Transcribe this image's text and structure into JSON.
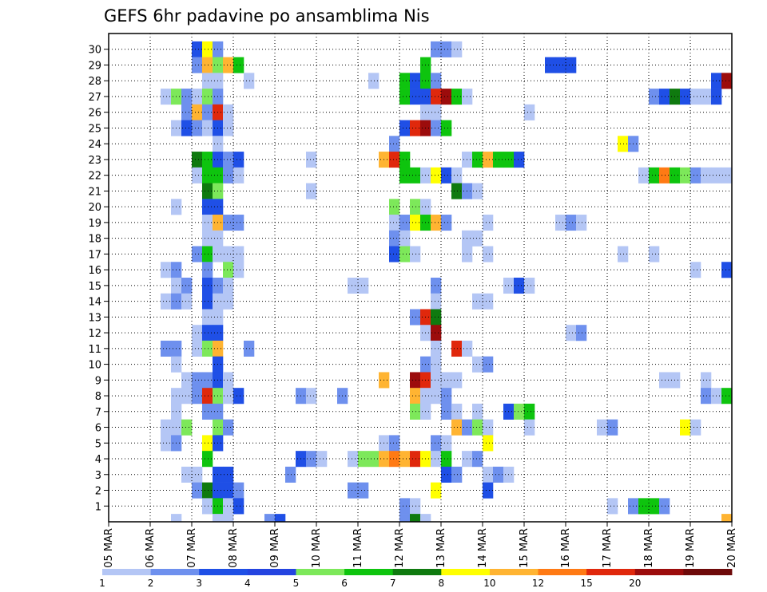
{
  "chart_data": {
    "type": "heatmap",
    "title": "GEFS 6hr padavine po ansamblima Nis",
    "x_ticks": [
      "05 MAR",
      "06 MAR",
      "07 MAR",
      "08 MAR",
      "09 MAR",
      "10 MAR",
      "11 MAR",
      "12 MAR",
      "13 MAR",
      "14 MAR",
      "15 MAR",
      "16 MAR",
      "17 MAR",
      "18 MAR",
      "19 MAR",
      "20 MAR"
    ],
    "xlim": [
      "05 MAR 00z",
      "20 MAR 00z"
    ],
    "step_hours": 6,
    "y_ticks": [
      "1",
      "2",
      "3",
      "4",
      "5",
      "6",
      "7",
      "8",
      "9",
      "10",
      "11",
      "12",
      "13",
      "14",
      "15",
      "16",
      "17",
      "18",
      "19",
      "20",
      "21",
      "22",
      "23",
      "24",
      "25",
      "26",
      "27",
      "28",
      "29",
      "30"
    ],
    "ylim": [
      0,
      30
    ],
    "grid": true,
    "colorbar": {
      "levels": [
        "1",
        "2",
        "3",
        "4",
        "5",
        "6",
        "7",
        "8",
        "10",
        "12",
        "15",
        "20"
      ],
      "colors": [
        "#b4c6f5",
        "#6e90ee",
        "#1f4fe6",
        "#2444e0",
        "#7de85a",
        "#0ec40e",
        "#0f7a0f",
        "#ffff00",
        "#ffb432",
        "#ff7a14",
        "#e0280c",
        "#9c0c0c",
        "#6e0a0a"
      ],
      "position": "bottom"
    },
    "cells": [
      [
        8,
        30,
        3
      ],
      [
        9,
        30,
        8
      ],
      [
        10,
        30,
        2
      ],
      [
        31,
        30,
        2
      ],
      [
        32,
        30,
        2
      ],
      [
        33,
        30,
        1
      ],
      [
        8,
        29,
        2
      ],
      [
        9,
        29,
        10
      ],
      [
        10,
        29,
        5
      ],
      [
        11,
        29,
        10
      ],
      [
        12,
        29,
        6
      ],
      [
        30,
        29,
        6
      ],
      [
        42,
        29,
        3
      ],
      [
        43,
        29,
        3
      ],
      [
        44,
        29,
        3
      ],
      [
        9,
        28,
        1
      ],
      [
        10,
        28,
        1
      ],
      [
        13,
        28,
        1
      ],
      [
        25,
        28,
        1
      ],
      [
        28,
        28,
        6
      ],
      [
        29,
        28,
        3
      ],
      [
        30,
        28,
        6
      ],
      [
        31,
        28,
        2
      ],
      [
        58,
        28,
        3
      ],
      [
        59,
        28,
        20
      ],
      [
        5,
        27,
        1
      ],
      [
        6,
        27,
        5
      ],
      [
        7,
        27,
        2
      ],
      [
        8,
        27,
        1
      ],
      [
        9,
        27,
        5
      ],
      [
        10,
        27,
        2
      ],
      [
        28,
        27,
        6
      ],
      [
        29,
        27,
        3
      ],
      [
        30,
        27,
        3
      ],
      [
        31,
        27,
        15
      ],
      [
        32,
        27,
        20
      ],
      [
        33,
        27,
        6
      ],
      [
        34,
        27,
        1
      ],
      [
        52,
        27,
        2
      ],
      [
        53,
        27,
        3
      ],
      [
        54,
        27,
        7
      ],
      [
        55,
        27,
        3
      ],
      [
        56,
        27,
        1
      ],
      [
        57,
        27,
        1
      ],
      [
        58,
        27,
        3
      ],
      [
        7,
        26,
        2
      ],
      [
        8,
        26,
        10
      ],
      [
        9,
        26,
        2
      ],
      [
        10,
        26,
        15
      ],
      [
        11,
        26,
        1
      ],
      [
        30,
        26,
        1
      ],
      [
        31,
        26,
        1
      ],
      [
        40,
        26,
        1
      ],
      [
        6,
        25,
        1
      ],
      [
        7,
        25,
        3
      ],
      [
        8,
        25,
        2
      ],
      [
        9,
        25,
        1
      ],
      [
        10,
        25,
        3
      ],
      [
        11,
        25,
        1
      ],
      [
        28,
        25,
        3
      ],
      [
        29,
        25,
        15
      ],
      [
        30,
        25,
        20
      ],
      [
        31,
        25,
        2
      ],
      [
        32,
        25,
        6
      ],
      [
        10,
        24,
        1
      ],
      [
        27,
        24,
        2
      ],
      [
        49,
        24,
        8
      ],
      [
        50,
        24,
        2
      ],
      [
        8,
        23,
        7
      ],
      [
        9,
        23,
        6
      ],
      [
        10,
        23,
        3
      ],
      [
        11,
        23,
        2
      ],
      [
        12,
        23,
        3
      ],
      [
        19,
        23,
        1
      ],
      [
        26,
        23,
        10
      ],
      [
        27,
        23,
        15
      ],
      [
        28,
        23,
        6
      ],
      [
        34,
        23,
        1
      ],
      [
        35,
        23,
        6
      ],
      [
        36,
        23,
        10
      ],
      [
        37,
        23,
        6
      ],
      [
        38,
        23,
        6
      ],
      [
        39,
        23,
        3
      ],
      [
        8,
        22,
        1
      ],
      [
        9,
        22,
        6
      ],
      [
        10,
        22,
        6
      ],
      [
        11,
        22,
        2
      ],
      [
        12,
        22,
        1
      ],
      [
        28,
        22,
        6
      ],
      [
        29,
        22,
        6
      ],
      [
        30,
        22,
        1
      ],
      [
        31,
        22,
        8
      ],
      [
        32,
        22,
        3
      ],
      [
        33,
        22,
        1
      ],
      [
        51,
        22,
        1
      ],
      [
        52,
        22,
        6
      ],
      [
        53,
        22,
        12
      ],
      [
        54,
        22,
        6
      ],
      [
        55,
        22,
        5
      ],
      [
        56,
        22,
        2
      ],
      [
        57,
        22,
        1
      ],
      [
        58,
        22,
        1
      ],
      [
        59,
        22,
        1
      ],
      [
        9,
        21,
        7
      ],
      [
        10,
        21,
        5
      ],
      [
        19,
        21,
        1
      ],
      [
        33,
        21,
        7
      ],
      [
        34,
        21,
        2
      ],
      [
        35,
        21,
        1
      ],
      [
        6,
        20,
        1
      ],
      [
        9,
        20,
        3
      ],
      [
        10,
        20,
        3
      ],
      [
        27,
        20,
        5
      ],
      [
        29,
        20,
        5
      ],
      [
        30,
        20,
        1
      ],
      [
        9,
        19,
        1
      ],
      [
        10,
        19,
        10
      ],
      [
        11,
        19,
        2
      ],
      [
        12,
        19,
        2
      ],
      [
        27,
        19,
        1
      ],
      [
        28,
        19,
        2
      ],
      [
        29,
        19,
        8
      ],
      [
        30,
        19,
        6
      ],
      [
        31,
        19,
        10
      ],
      [
        32,
        19,
        2
      ],
      [
        36,
        19,
        1
      ],
      [
        43,
        19,
        1
      ],
      [
        44,
        19,
        2
      ],
      [
        45,
        19,
        1
      ],
      [
        9,
        18,
        1
      ],
      [
        10,
        18,
        1
      ],
      [
        27,
        18,
        2
      ],
      [
        28,
        18,
        1
      ],
      [
        34,
        18,
        1
      ],
      [
        35,
        18,
        1
      ],
      [
        8,
        17,
        2
      ],
      [
        9,
        17,
        6
      ],
      [
        10,
        17,
        1
      ],
      [
        11,
        17,
        1
      ],
      [
        12,
        17,
        1
      ],
      [
        27,
        17,
        3
      ],
      [
        28,
        17,
        5
      ],
      [
        29,
        17,
        1
      ],
      [
        34,
        17,
        1
      ],
      [
        36,
        17,
        1
      ],
      [
        49,
        17,
        1
      ],
      [
        52,
        17,
        1
      ],
      [
        5,
        16,
        1
      ],
      [
        6,
        16,
        2
      ],
      [
        9,
        16,
        2
      ],
      [
        11,
        16,
        5
      ],
      [
        12,
        16,
        1
      ],
      [
        56,
        16,
        1
      ],
      [
        59,
        16,
        3
      ],
      [
        6,
        15,
        1
      ],
      [
        7,
        15,
        2
      ],
      [
        9,
        15,
        3
      ],
      [
        10,
        15,
        2
      ],
      [
        11,
        15,
        1
      ],
      [
        23,
        15,
        1
      ],
      [
        24,
        15,
        1
      ],
      [
        31,
        15,
        2
      ],
      [
        38,
        15,
        1
      ],
      [
        39,
        15,
        3
      ],
      [
        40,
        15,
        1
      ],
      [
        5,
        14,
        1
      ],
      [
        6,
        14,
        2
      ],
      [
        7,
        14,
        1
      ],
      [
        9,
        14,
        3
      ],
      [
        10,
        14,
        1
      ],
      [
        11,
        14,
        1
      ],
      [
        31,
        14,
        1
      ],
      [
        35,
        14,
        1
      ],
      [
        36,
        14,
        1
      ],
      [
        9,
        13,
        1
      ],
      [
        10,
        13,
        1
      ],
      [
        29,
        13,
        2
      ],
      [
        30,
        13,
        15
      ],
      [
        31,
        13,
        7
      ],
      [
        8,
        12,
        1
      ],
      [
        9,
        12,
        3
      ],
      [
        10,
        12,
        3
      ],
      [
        30,
        12,
        1
      ],
      [
        31,
        12,
        20
      ],
      [
        44,
        12,
        1
      ],
      [
        45,
        12,
        2
      ],
      [
        5,
        11,
        2
      ],
      [
        6,
        11,
        2
      ],
      [
        8,
        11,
        1
      ],
      [
        9,
        11,
        5
      ],
      [
        10,
        11,
        10
      ],
      [
        13,
        11,
        2
      ],
      [
        31,
        11,
        1
      ],
      [
        33,
        11,
        15
      ],
      [
        34,
        11,
        1
      ],
      [
        6,
        10,
        1
      ],
      [
        10,
        10,
        3
      ],
      [
        30,
        10,
        2
      ],
      [
        31,
        10,
        1
      ],
      [
        35,
        10,
        1
      ],
      [
        36,
        10,
        2
      ],
      [
        7,
        9,
        1
      ],
      [
        8,
        9,
        2
      ],
      [
        9,
        9,
        2
      ],
      [
        10,
        9,
        3
      ],
      [
        11,
        9,
        1
      ],
      [
        26,
        9,
        10
      ],
      [
        29,
        9,
        20
      ],
      [
        30,
        9,
        15
      ],
      [
        31,
        9,
        1
      ],
      [
        32,
        9,
        1
      ],
      [
        33,
        9,
        1
      ],
      [
        53,
        9,
        1
      ],
      [
        54,
        9,
        1
      ],
      [
        57,
        9,
        1
      ],
      [
        6,
        8,
        1
      ],
      [
        7,
        8,
        1
      ],
      [
        8,
        8,
        2
      ],
      [
        9,
        8,
        15
      ],
      [
        10,
        8,
        5
      ],
      [
        11,
        8,
        1
      ],
      [
        12,
        8,
        3
      ],
      [
        18,
        8,
        2
      ],
      [
        19,
        8,
        1
      ],
      [
        22,
        8,
        2
      ],
      [
        29,
        8,
        10
      ],
      [
        30,
        8,
        1
      ],
      [
        31,
        8,
        1
      ],
      [
        32,
        8,
        2
      ],
      [
        57,
        8,
        2
      ],
      [
        58,
        8,
        1
      ],
      [
        59,
        8,
        6
      ],
      [
        6,
        7,
        1
      ],
      [
        9,
        7,
        2
      ],
      [
        10,
        7,
        2
      ],
      [
        29,
        7,
        5
      ],
      [
        30,
        7,
        1
      ],
      [
        32,
        7,
        2
      ],
      [
        33,
        7,
        1
      ],
      [
        35,
        7,
        1
      ],
      [
        38,
        7,
        3
      ],
      [
        39,
        7,
        5
      ],
      [
        40,
        7,
        6
      ],
      [
        5,
        6,
        1
      ],
      [
        6,
        6,
        1
      ],
      [
        7,
        6,
        5
      ],
      [
        10,
        6,
        5
      ],
      [
        11,
        6,
        2
      ],
      [
        33,
        6,
        10
      ],
      [
        34,
        6,
        2
      ],
      [
        35,
        6,
        5
      ],
      [
        36,
        6,
        1
      ],
      [
        40,
        6,
        1
      ],
      [
        47,
        6,
        1
      ],
      [
        48,
        6,
        2
      ],
      [
        55,
        6,
        8
      ],
      [
        56,
        6,
        1
      ],
      [
        5,
        5,
        1
      ],
      [
        6,
        5,
        2
      ],
      [
        9,
        5,
        8
      ],
      [
        10,
        5,
        3
      ],
      [
        26,
        5,
        1
      ],
      [
        27,
        5,
        2
      ],
      [
        31,
        5,
        2
      ],
      [
        32,
        5,
        1
      ],
      [
        36,
        5,
        8
      ],
      [
        9,
        4,
        6
      ],
      [
        18,
        4,
        3
      ],
      [
        19,
        4,
        2
      ],
      [
        20,
        4,
        1
      ],
      [
        23,
        4,
        1
      ],
      [
        24,
        4,
        5
      ],
      [
        25,
        4,
        5
      ],
      [
        26,
        4,
        10
      ],
      [
        27,
        4,
        12
      ],
      [
        28,
        4,
        10
      ],
      [
        29,
        4,
        15
      ],
      [
        30,
        4,
        8
      ],
      [
        31,
        4,
        1
      ],
      [
        32,
        4,
        6
      ],
      [
        34,
        4,
        1
      ],
      [
        35,
        4,
        2
      ],
      [
        7,
        3,
        1
      ],
      [
        8,
        3,
        1
      ],
      [
        10,
        3,
        3
      ],
      [
        11,
        3,
        3
      ],
      [
        17,
        3,
        2
      ],
      [
        32,
        3,
        3
      ],
      [
        33,
        3,
        2
      ],
      [
        36,
        3,
        1
      ],
      [
        37,
        3,
        2
      ],
      [
        38,
        3,
        1
      ],
      [
        8,
        2,
        2
      ],
      [
        9,
        2,
        7
      ],
      [
        10,
        2,
        3
      ],
      [
        11,
        2,
        3
      ],
      [
        12,
        2,
        2
      ],
      [
        23,
        2,
        2
      ],
      [
        24,
        2,
        2
      ],
      [
        31,
        2,
        8
      ],
      [
        36,
        2,
        3
      ],
      [
        9,
        1,
        1
      ],
      [
        10,
        1,
        6
      ],
      [
        11,
        1,
        1
      ],
      [
        12,
        1,
        3
      ],
      [
        28,
        1,
        2
      ],
      [
        29,
        1,
        1
      ],
      [
        48,
        1,
        1
      ],
      [
        50,
        1,
        2
      ],
      [
        51,
        1,
        6
      ],
      [
        52,
        1,
        6
      ],
      [
        53,
        1,
        2
      ],
      [
        6,
        0,
        1
      ],
      [
        10,
        0,
        1
      ],
      [
        11,
        0,
        1
      ],
      [
        15,
        0,
        2
      ],
      [
        16,
        0,
        3
      ],
      [
        28,
        0,
        2
      ],
      [
        29,
        0,
        7
      ],
      [
        30,
        0,
        1
      ],
      [
        59,
        0,
        10
      ]
    ]
  }
}
